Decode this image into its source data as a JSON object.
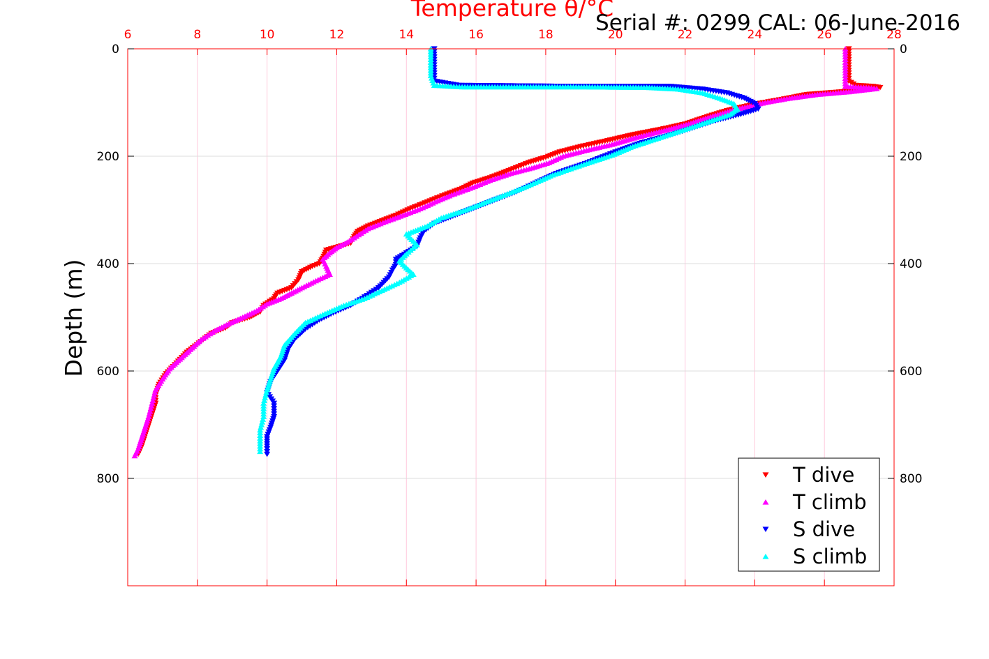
{
  "chart_data": {
    "type": "scatter",
    "title": "Temperature θ/°C",
    "annotation": "Serial #: 0299 CAL: 06-June-2016",
    "xlabel": "Temperature θ/°C",
    "ylabel": "Depth (m)",
    "xlim": [
      6,
      28
    ],
    "ylim": [
      0,
      1000
    ],
    "y_reversed": true,
    "x_axis_position": "top",
    "x_ticks": [
      6,
      8,
      10,
      12,
      14,
      16,
      18,
      20,
      22,
      24,
      26,
      28
    ],
    "x_tick_labels": [
      "6",
      "8",
      "10",
      "12",
      "14",
      "16",
      "18",
      "20",
      "22",
      "24",
      "26",
      "28"
    ],
    "y_ticks": [
      0,
      200,
      400,
      600,
      800
    ],
    "y_tick_labels": [
      "0",
      "200",
      "400",
      "600",
      "800"
    ],
    "grid": true,
    "legend_position": "bottom-right",
    "colors": {
      "x_axis": "#ff0000",
      "grid_x": "#ffc8dc",
      "grid_y": "#dcdcdc"
    },
    "series": [
      {
        "name": "T dive",
        "color": "#ff0000",
        "marker": "triangle-down",
        "points": [
          [
            26.7,
            0
          ],
          [
            26.7,
            30
          ],
          [
            26.7,
            60
          ],
          [
            26.9,
            68
          ],
          [
            27.4,
            70
          ],
          [
            27.6,
            72
          ],
          [
            27.2,
            76
          ],
          [
            26.5,
            80
          ],
          [
            25.5,
            85
          ],
          [
            24.7,
            95
          ],
          [
            24.0,
            103
          ],
          [
            23.2,
            115
          ],
          [
            22.7,
            125
          ],
          [
            22.0,
            140
          ],
          [
            21.3,
            150
          ],
          [
            20.5,
            160
          ],
          [
            19.7,
            172
          ],
          [
            19.0,
            182
          ],
          [
            18.4,
            192
          ],
          [
            18.0,
            202
          ],
          [
            17.5,
            212
          ],
          [
            17.0,
            225
          ],
          [
            16.4,
            240
          ],
          [
            15.9,
            250
          ],
          [
            15.6,
            260
          ],
          [
            15.1,
            272
          ],
          [
            14.6,
            285
          ],
          [
            14.1,
            298
          ],
          [
            13.7,
            310
          ],
          [
            13.3,
            320
          ],
          [
            12.9,
            330
          ],
          [
            12.6,
            340
          ],
          [
            12.5,
            350
          ],
          [
            12.4,
            362
          ],
          [
            11.7,
            375
          ],
          [
            11.6,
            390
          ],
          [
            11.5,
            400
          ],
          [
            11.3,
            405
          ],
          [
            11.0,
            415
          ],
          [
            10.9,
            430
          ],
          [
            10.7,
            445
          ],
          [
            10.3,
            455
          ],
          [
            10.2,
            465
          ],
          [
            9.9,
            478
          ],
          [
            9.8,
            490
          ],
          [
            9.5,
            500
          ],
          [
            9.0,
            510
          ],
          [
            8.8,
            520
          ],
          [
            8.4,
            530
          ],
          [
            8.1,
            545
          ],
          [
            7.7,
            565
          ],
          [
            7.4,
            585
          ],
          [
            7.1,
            605
          ],
          [
            6.9,
            625
          ],
          [
            6.8,
            645
          ],
          [
            6.8,
            660
          ],
          [
            6.7,
            680
          ],
          [
            6.6,
            700
          ],
          [
            6.5,
            720
          ],
          [
            6.4,
            740
          ],
          [
            6.3,
            755
          ]
        ]
      },
      {
        "name": "T climb",
        "color": "#ff00ff",
        "marker": "triangle-up",
        "points": [
          [
            26.6,
            0
          ],
          [
            26.6,
            20
          ],
          [
            26.6,
            45
          ],
          [
            26.6,
            70
          ],
          [
            27.2,
            72
          ],
          [
            27.5,
            74
          ],
          [
            26.7,
            80
          ],
          [
            25.8,
            85
          ],
          [
            25.0,
            92
          ],
          [
            24.3,
            100
          ],
          [
            23.5,
            112
          ],
          [
            22.8,
            125
          ],
          [
            22.1,
            140
          ],
          [
            21.4,
            152
          ],
          [
            20.6,
            165
          ],
          [
            19.9,
            178
          ],
          [
            19.1,
            190
          ],
          [
            18.5,
            200
          ],
          [
            18.1,
            212
          ],
          [
            17.6,
            222
          ],
          [
            17.0,
            232
          ],
          [
            16.4,
            245
          ],
          [
            15.9,
            258
          ],
          [
            15.3,
            272
          ],
          [
            14.9,
            283
          ],
          [
            14.4,
            298
          ],
          [
            13.9,
            310
          ],
          [
            13.4,
            322
          ],
          [
            12.9,
            335
          ],
          [
            12.5,
            352
          ],
          [
            12.3,
            360
          ],
          [
            12.0,
            370
          ],
          [
            11.8,
            380
          ],
          [
            11.6,
            392
          ],
          [
            11.7,
            405
          ],
          [
            11.8,
            420
          ],
          [
            11.4,
            432
          ],
          [
            11.0,
            445
          ],
          [
            10.7,
            455
          ],
          [
            10.4,
            465
          ],
          [
            10.0,
            475
          ],
          [
            9.7,
            488
          ],
          [
            9.3,
            500
          ],
          [
            8.9,
            512
          ],
          [
            8.5,
            525
          ],
          [
            8.1,
            542
          ],
          [
            7.8,
            560
          ],
          [
            7.5,
            578
          ],
          [
            7.2,
            596
          ],
          [
            7.0,
            615
          ],
          [
            6.8,
            635
          ],
          [
            6.7,
            660
          ],
          [
            6.6,
            685
          ],
          [
            6.5,
            705
          ],
          [
            6.4,
            725
          ],
          [
            6.3,
            745
          ],
          [
            6.2,
            758
          ]
        ]
      },
      {
        "name": "S dive",
        "color": "#0000ff",
        "marker": "triangle-down",
        "points": [
          [
            14.8,
            0
          ],
          [
            14.8,
            30
          ],
          [
            14.8,
            60
          ],
          [
            15.5,
            68
          ],
          [
            17.3,
            69
          ],
          [
            19.0,
            70
          ],
          [
            20.0,
            70
          ],
          [
            21.6,
            70
          ],
          [
            22.5,
            75
          ],
          [
            23.2,
            82
          ],
          [
            23.7,
            92
          ],
          [
            24.0,
            102
          ],
          [
            24.1,
            112
          ],
          [
            23.6,
            122
          ],
          [
            22.8,
            135
          ],
          [
            22.2,
            148
          ],
          [
            21.5,
            162
          ],
          [
            20.7,
            176
          ],
          [
            20.0,
            192
          ],
          [
            19.2,
            212
          ],
          [
            18.3,
            232
          ],
          [
            17.7,
            250
          ],
          [
            17.1,
            268
          ],
          [
            16.6,
            280
          ],
          [
            16.0,
            295
          ],
          [
            15.4,
            310
          ],
          [
            14.8,
            325
          ],
          [
            14.5,
            340
          ],
          [
            14.4,
            352
          ],
          [
            14.3,
            368
          ],
          [
            14.0,
            380
          ],
          [
            13.7,
            392
          ],
          [
            13.7,
            402
          ],
          [
            13.6,
            412
          ],
          [
            13.5,
            425
          ],
          [
            13.2,
            445
          ],
          [
            12.8,
            462
          ],
          [
            12.4,
            478
          ],
          [
            11.9,
            492
          ],
          [
            11.5,
            505
          ],
          [
            11.1,
            522
          ],
          [
            10.8,
            540
          ],
          [
            10.6,
            560
          ],
          [
            10.5,
            580
          ],
          [
            10.3,
            600
          ],
          [
            10.1,
            620
          ],
          [
            10.0,
            640
          ],
          [
            10.2,
            660
          ],
          [
            10.2,
            685
          ],
          [
            10.1,
            705
          ],
          [
            10.0,
            722
          ],
          [
            10.0,
            740
          ],
          [
            10.0,
            755
          ]
        ]
      },
      {
        "name": "S climb",
        "color": "#00ffff",
        "marker": "triangle-up",
        "points": [
          [
            14.7,
            0
          ],
          [
            14.7,
            25
          ],
          [
            14.7,
            50
          ],
          [
            14.8,
            68
          ],
          [
            15.6,
            71
          ],
          [
            16.3,
            71
          ],
          [
            17.1,
            71
          ],
          [
            17.8,
            71
          ],
          [
            19.1,
            71
          ],
          [
            20.9,
            72
          ],
          [
            21.8,
            75
          ],
          [
            22.5,
            82
          ],
          [
            23.0,
            92
          ],
          [
            23.4,
            102
          ],
          [
            23.5,
            112
          ],
          [
            23.3,
            122
          ],
          [
            22.7,
            135
          ],
          [
            22.0,
            150
          ],
          [
            21.3,
            165
          ],
          [
            20.5,
            182
          ],
          [
            19.9,
            198
          ],
          [
            19.1,
            215
          ],
          [
            18.2,
            235
          ],
          [
            17.5,
            255
          ],
          [
            16.9,
            270
          ],
          [
            16.3,
            285
          ],
          [
            15.7,
            300
          ],
          [
            15.0,
            315
          ],
          [
            14.6,
            330
          ],
          [
            14.0,
            345
          ],
          [
            14.3,
            365
          ],
          [
            14.0,
            382
          ],
          [
            13.8,
            395
          ],
          [
            14.0,
            408
          ],
          [
            14.2,
            420
          ],
          [
            13.8,
            435
          ],
          [
            13.3,
            450
          ],
          [
            12.8,
            465
          ],
          [
            12.2,
            478
          ],
          [
            11.6,
            495
          ],
          [
            11.1,
            510
          ],
          [
            10.8,
            530
          ],
          [
            10.5,
            552
          ],
          [
            10.4,
            572
          ],
          [
            10.2,
            595
          ],
          [
            10.1,
            615
          ],
          [
            10.0,
            635
          ],
          [
            9.9,
            660
          ],
          [
            9.9,
            685
          ],
          [
            9.8,
            710
          ],
          [
            9.8,
            730
          ],
          [
            9.8,
            750
          ]
        ]
      }
    ]
  }
}
